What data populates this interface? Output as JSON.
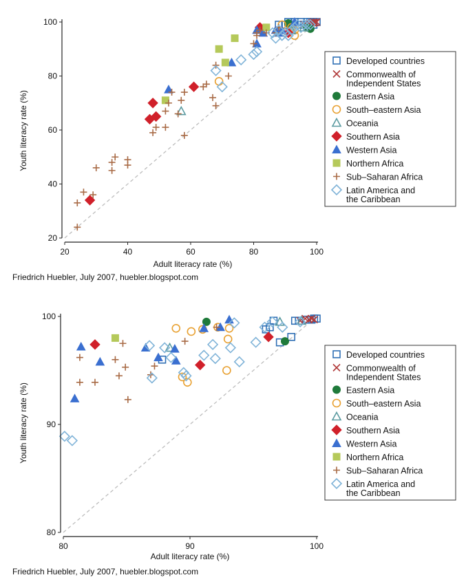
{
  "colors": {
    "developed": "#2f6fb5",
    "cis": "#b03a3a",
    "eastern_asia": "#1f7a3a",
    "southeastern_asia": "#e8a030",
    "oceania": "#5a9aa0",
    "southern_asia": "#d0202a",
    "western_asia": "#3a6fd0",
    "northern_africa": "#b5c95a",
    "subsaharan": "#a86a45",
    "latin_america": "#7fb3d8",
    "reference_line": "#bdbdbd",
    "axis": "#222222"
  },
  "legend": [
    {
      "key": "developed",
      "label": [
        "Developed countries"
      ],
      "marker": "square-open",
      "color": "#2f6fb5"
    },
    {
      "key": "cis",
      "label": [
        "Commonwealth of",
        "Independent States"
      ],
      "marker": "x",
      "color": "#b03a3a"
    },
    {
      "key": "eastern_asia",
      "label": [
        "Eastern Asia"
      ],
      "marker": "circle-filled",
      "color": "#1f7a3a"
    },
    {
      "key": "southeastern_asia",
      "label": [
        "South–eastern Asia"
      ],
      "marker": "circle-open",
      "color": "#e8a030"
    },
    {
      "key": "oceania",
      "label": [
        "Oceania"
      ],
      "marker": "triangle-open",
      "color": "#5a9aa0"
    },
    {
      "key": "southern_asia",
      "label": [
        "Southern Asia"
      ],
      "marker": "diamond-filled",
      "color": "#d0202a"
    },
    {
      "key": "western_asia",
      "label": [
        "Western Asia"
      ],
      "marker": "triangle-filled",
      "color": "#3a6fd0"
    },
    {
      "key": "northern_africa",
      "label": [
        "Northern Africa"
      ],
      "marker": "square-filled",
      "color": "#b5c95a"
    },
    {
      "key": "subsaharan",
      "label": [
        "Sub–Saharan Africa"
      ],
      "marker": "plus",
      "color": "#a86a45"
    },
    {
      "key": "latin_america",
      "label": [
        "Latin America and",
        "the Caribbean"
      ],
      "marker": "diamond-open",
      "color": "#7fb3d8"
    }
  ],
  "chart_data": [
    {
      "type": "scatter",
      "xlabel": "Adult literacy rate (%)",
      "ylabel": "Youth literacy rate (%)",
      "xlim": [
        20,
        100
      ],
      "ylim": [
        20,
        100
      ],
      "xticks": [
        20,
        40,
        60,
        80,
        100
      ],
      "yticks": [
        20,
        40,
        60,
        80,
        100
      ],
      "reference_line": "y = x (dashed)",
      "legend_position": "right",
      "credit": "Friedrich Huebler, July 2007, huebler.blogspot.com",
      "series": [
        {
          "name": "Developed countries",
          "key": "developed",
          "points": [
            [
              88,
              99
            ],
            [
              90,
              99
            ],
            [
              91,
              100
            ],
            [
              93,
              100
            ],
            [
              94,
              99
            ],
            [
              95,
              100
            ],
            [
              96,
              99
            ],
            [
              97,
              100
            ],
            [
              98,
              100
            ],
            [
              99,
              100
            ],
            [
              99,
              99
            ],
            [
              100,
              100
            ]
          ]
        },
        {
          "name": "Commonwealth of Independent States",
          "key": "cis",
          "points": [
            [
              96,
              99
            ],
            [
              97,
              98
            ],
            [
              98,
              99
            ],
            [
              99,
              100
            ],
            [
              99.5,
              99.8
            ],
            [
              100,
              100
            ],
            [
              99,
              99.6
            ],
            [
              98.5,
              99.7
            ],
            [
              97.5,
              99.3
            ]
          ]
        },
        {
          "name": "Eastern Asia",
          "key": "eastern_asia",
          "points": [
            [
              91,
              99.5
            ],
            [
              97,
              98
            ],
            [
              98,
              97.5
            ]
          ]
        },
        {
          "name": "South–eastern Asia",
          "key": "southeastern_asia",
          "points": [
            [
              69,
              78
            ],
            [
              89,
              99
            ],
            [
              90,
              96
            ],
            [
              92,
              98
            ],
            [
              93,
              97
            ],
            [
              93,
              95
            ]
          ]
        },
        {
          "name": "Oceania",
          "key": "oceania",
          "points": [
            [
              57,
              67
            ],
            [
              92,
              97
            ],
            [
              96,
              98
            ]
          ]
        },
        {
          "name": "Southern Asia",
          "key": "southern_asia",
          "points": [
            [
              28,
              34
            ],
            [
              47,
              64
            ],
            [
              48,
              70
            ],
            [
              49,
              65
            ],
            [
              61,
              76
            ],
            [
              82,
              98
            ],
            [
              91,
              96
            ]
          ]
        },
        {
          "name": "Western Asia",
          "key": "western_asia",
          "points": [
            [
              53,
              75
            ],
            [
              73,
              85
            ],
            [
              81,
              92
            ],
            [
              81,
              97
            ],
            [
              83,
              96
            ],
            [
              87,
              97
            ],
            [
              88,
              96
            ],
            [
              89,
              97
            ],
            [
              93,
              100
            ]
          ]
        },
        {
          "name": "Northern Africa",
          "key": "northern_africa",
          "points": [
            [
              52,
              71
            ],
            [
              69,
              90
            ],
            [
              71,
              85
            ],
            [
              74,
              94
            ],
            [
              84,
              98
            ]
          ]
        },
        {
          "name": "Sub–Saharan Africa",
          "key": "subsaharan",
          "points": [
            [
              24,
              33
            ],
            [
              24,
              24
            ],
            [
              26,
              37
            ],
            [
              29,
              36
            ],
            [
              30,
              46
            ],
            [
              35,
              45
            ],
            [
              35,
              48
            ],
            [
              36,
              50
            ],
            [
              40,
              47
            ],
            [
              40,
              49
            ],
            [
              48,
              59
            ],
            [
              49,
              61
            ],
            [
              52,
              61
            ],
            [
              52,
              67
            ],
            [
              53,
              70
            ],
            [
              54,
              74
            ],
            [
              56,
              66
            ],
            [
              57,
              71
            ],
            [
              58,
              58
            ],
            [
              58,
              74
            ],
            [
              64,
              76
            ],
            [
              65,
              77
            ],
            [
              67,
              72
            ],
            [
              68,
              69
            ],
            [
              68,
              84
            ],
            [
              72,
              80
            ],
            [
              80,
              92
            ],
            [
              81,
              95
            ],
            [
              81,
              96
            ],
            [
              82,
              97
            ],
            [
              84,
              96
            ],
            [
              87,
              96
            ],
            [
              88,
              98
            ]
          ]
        },
        {
          "name": "Latin America and the Caribbean",
          "key": "latin_america",
          "points": [
            [
              68,
              82
            ],
            [
              70,
              76
            ],
            [
              76,
              86
            ],
            [
              80,
              88
            ],
            [
              81,
              89
            ],
            [
              86,
              96
            ],
            [
              87,
              94
            ],
            [
              88,
              97
            ],
            [
              89,
              95
            ],
            [
              90,
              96
            ],
            [
              91,
              95
            ],
            [
              92,
              97
            ],
            [
              93,
              98
            ],
            [
              94,
              99
            ],
            [
              95,
              98
            ],
            [
              96,
              99
            ],
            [
              97,
              99
            ],
            [
              98,
              99
            ]
          ]
        }
      ]
    },
    {
      "type": "scatter",
      "xlabel": "Adult literacy rate (%)",
      "ylabel": "Youth literacy rate (%)",
      "xlim": [
        80,
        100
      ],
      "ylim": [
        80,
        100
      ],
      "xticks": [
        80,
        90,
        100
      ],
      "yticks": [
        80,
        90,
        100
      ],
      "reference_line": "y = x (dashed)",
      "legend_position": "right",
      "credit": "Friedrich Huebler, July 2007, huebler.blogspot.com",
      "series": [
        {
          "name": "Developed countries",
          "key": "developed",
          "points": [
            [
              87.8,
              96
            ],
            [
              96,
              98.8
            ],
            [
              96.3,
              99
            ],
            [
              96.6,
              99.6
            ],
            [
              97.1,
              97.6
            ],
            [
              98,
              98.1
            ],
            [
              98.3,
              99.6
            ],
            [
              98.6,
              99.6
            ],
            [
              99.2,
              99.7
            ],
            [
              99.6,
              99.7
            ],
            [
              99.8,
              99.8
            ],
            [
              100,
              99.8
            ]
          ]
        },
        {
          "name": "Commonwealth of Independent States",
          "key": "cis",
          "points": [
            [
              98.7,
              99.6
            ],
            [
              99.1,
              99.8
            ],
            [
              99.4,
              99.7
            ],
            [
              99.6,
              99.8
            ],
            [
              99.8,
              99.7
            ]
          ]
        },
        {
          "name": "Eastern Asia",
          "key": "eastern_asia",
          "points": [
            [
              91.3,
              99.5
            ],
            [
              97.5,
              97.7
            ]
          ]
        },
        {
          "name": "South–eastern Asia",
          "key": "southeastern_asia",
          "points": [
            [
              88.9,
              98.9
            ],
            [
              89.4,
              94.4
            ],
            [
              89.8,
              93.9
            ],
            [
              90.1,
              98.6
            ],
            [
              91,
              98.8
            ],
            [
              92.2,
              99
            ],
            [
              92.9,
              95
            ],
            [
              93,
              97.9
            ],
            [
              93.1,
              98.9
            ]
          ]
        },
        {
          "name": "Oceania",
          "key": "oceania",
          "points": [
            [
              88.4,
              97.1
            ],
            [
              97.1,
              99.5
            ],
            [
              98.8,
              99.6
            ]
          ]
        },
        {
          "name": "Southern Asia",
          "key": "southern_asia",
          "points": [
            [
              82.5,
              97.4
            ],
            [
              90.8,
              95.5
            ],
            [
              96.2,
              98.1
            ]
          ]
        },
        {
          "name": "Western Asia",
          "key": "western_asia",
          "points": [
            [
              80.9,
              92.4
            ],
            [
              81.4,
              97.2
            ],
            [
              82.9,
              95.8
            ],
            [
              86.5,
              97.1
            ],
            [
              87.5,
              96.2
            ],
            [
              88.8,
              97
            ],
            [
              88.9,
              95.9
            ],
            [
              91.1,
              98.9
            ],
            [
              92.4,
              99
            ],
            [
              93.1,
              99.7
            ]
          ]
        },
        {
          "name": "Northern Africa",
          "key": "northern_africa",
          "points": [
            [
              84.1,
              98
            ]
          ]
        },
        {
          "name": "Sub–Saharan Africa",
          "key": "subsaharan",
          "points": [
            [
              81.3,
              96.2
            ],
            [
              81.3,
              93.9
            ],
            [
              82.5,
              93.9
            ],
            [
              84.1,
              96
            ],
            [
              84.4,
              94.5
            ],
            [
              84.7,
              97.5
            ],
            [
              84.9,
              95.3
            ],
            [
              85.1,
              92.3
            ],
            [
              86.9,
              94.6
            ],
            [
              87.2,
              95.4
            ],
            [
              89.6,
              97.7
            ],
            [
              92.1,
              99
            ]
          ]
        },
        {
          "name": "Latin America and the Caribbean",
          "key": "latin_america",
          "points": [
            [
              80.1,
              88.9
            ],
            [
              80.7,
              88.5
            ],
            [
              86.8,
              97.3
            ],
            [
              87,
              94.3
            ],
            [
              88,
              97.1
            ],
            [
              88.5,
              96.2
            ],
            [
              89.5,
              94.8
            ],
            [
              89.7,
              94.5
            ],
            [
              91.1,
              96.4
            ],
            [
              91.8,
              97.4
            ],
            [
              92,
              96.1
            ],
            [
              93.2,
              97.1
            ],
            [
              93.5,
              99.4
            ],
            [
              93.9,
              95.8
            ],
            [
              95.2,
              97.6
            ],
            [
              95.9,
              99
            ],
            [
              96.5,
              99.5
            ],
            [
              97.3,
              99
            ],
            [
              98.7,
              99.5
            ]
          ]
        }
      ]
    }
  ]
}
